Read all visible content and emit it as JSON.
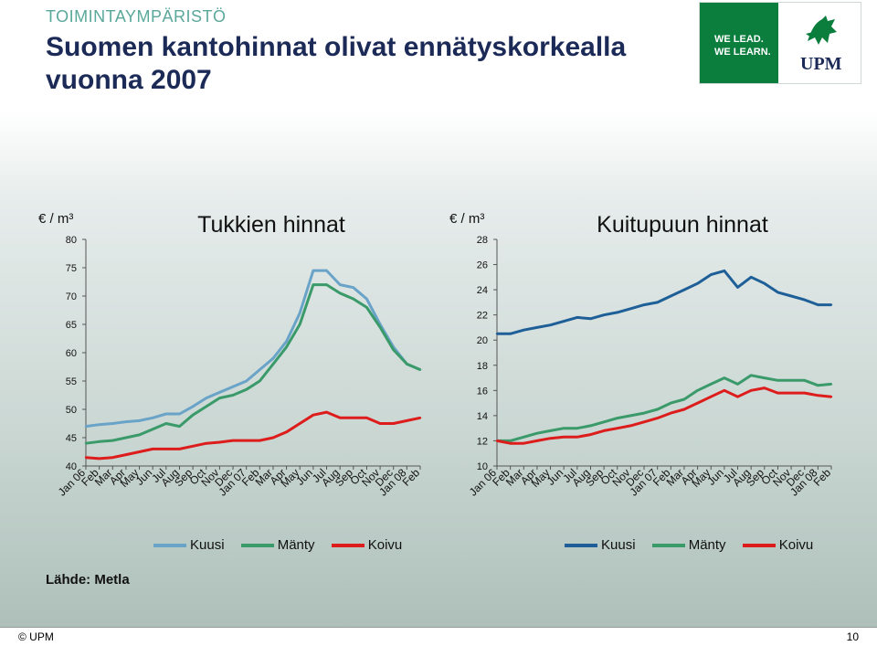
{
  "header": {
    "section": "TOIMINTAYMPÄRISTÖ",
    "title": "Suomen kantohinnat olivat ennätyskorkealla vuonna 2007"
  },
  "logo": {
    "line1": "WE LEAD.",
    "line2": "WE LEARN.",
    "brand": "UPM",
    "color": "#0b7e3e"
  },
  "source": "Lähde: Metla",
  "footer": {
    "copyright": "© UPM",
    "page": "10"
  },
  "colors": {
    "kuusi_left": "#6aa3c8",
    "manty": "#3a9a6a",
    "koivu": "#dd1c1c",
    "kuusi_right": "#1e5f98"
  },
  "chart_data": [
    {
      "type": "line",
      "title": "Tukkien hinnat",
      "ylabel": "€ / m³",
      "ylim": [
        40,
        80
      ],
      "yticks": [
        40,
        45,
        50,
        55,
        60,
        65,
        70,
        75,
        80
      ],
      "categories": [
        "Jan 06",
        "Feb",
        "Mar",
        "Apr",
        "May",
        "Jun",
        "Jul",
        "Aug",
        "Sep",
        "Oct",
        "Nov",
        "Dec",
        "Jan 07",
        "Feb",
        "Mar",
        "Apr",
        "May",
        "Jun",
        "Jul",
        "Aug",
        "Sep",
        "Oct",
        "Nov",
        "Dec",
        "Jan 08",
        "Feb"
      ],
      "series": [
        {
          "name": "Kuusi",
          "color": "#6aa3c8",
          "values": [
            47,
            47.3,
            47.5,
            47.8,
            48,
            48.5,
            49.2,
            49.2,
            50.5,
            52,
            53,
            54,
            55,
            57,
            59,
            62,
            67,
            74.5,
            74.5,
            72,
            71.5,
            69.5,
            65,
            61,
            58,
            57
          ]
        },
        {
          "name": "Mänty",
          "color": "#3a9a6a",
          "values": [
            44,
            44.3,
            44.5,
            45,
            45.5,
            46.5,
            47.5,
            47,
            49,
            50.5,
            52,
            52.5,
            53.5,
            55,
            58,
            61,
            65,
            72,
            72,
            70.5,
            69.5,
            68,
            64.5,
            60.5,
            58,
            57
          ]
        },
        {
          "name": "Koivu",
          "color": "#dd1c1c",
          "values": [
            41.5,
            41.3,
            41.5,
            42,
            42.5,
            43,
            43,
            43,
            43.5,
            44,
            44.2,
            44.5,
            44.5,
            44.5,
            45,
            46,
            47.5,
            49,
            49.5,
            48.5,
            48.5,
            48.5,
            47.5,
            47.5,
            48,
            48.5
          ]
        }
      ]
    },
    {
      "type": "line",
      "title": "Kuitupuun hinnat",
      "ylabel": "€ / m³",
      "ylim": [
        10,
        28
      ],
      "yticks": [
        10,
        12,
        14,
        16,
        18,
        20,
        22,
        24,
        26,
        28
      ],
      "categories": [
        "Jan 06",
        "Feb",
        "Mar",
        "Apr",
        "May",
        "Jun",
        "Jul",
        "Aug",
        "Sep",
        "Oct",
        "Nov",
        "Dec",
        "Jan 07",
        "Feb",
        "Mar",
        "Apr",
        "May",
        "Jun",
        "Jul",
        "Aug",
        "Sep",
        "Oct",
        "Nov",
        "Dec",
        "Jan 08",
        "Feb"
      ],
      "series": [
        {
          "name": "Kuusi",
          "color": "#1e5f98",
          "values": [
            20.5,
            20.5,
            20.8,
            21,
            21.2,
            21.5,
            21.8,
            21.7,
            22,
            22.2,
            22.5,
            22.8,
            23,
            23.5,
            24,
            24.5,
            25.2,
            25.5,
            24.2,
            25,
            24.5,
            23.8,
            23.5,
            23.2,
            22.8,
            22.8
          ]
        },
        {
          "name": "Mänty",
          "color": "#3a9a6a",
          "values": [
            12,
            12,
            12.3,
            12.6,
            12.8,
            13,
            13,
            13.2,
            13.5,
            13.8,
            14,
            14.2,
            14.5,
            15,
            15.3,
            16,
            16.5,
            17,
            16.5,
            17.2,
            17,
            16.8,
            16.8,
            16.8,
            16.4,
            16.5
          ]
        },
        {
          "name": "Koivu",
          "color": "#dd1c1c",
          "values": [
            12,
            11.8,
            11.8,
            12,
            12.2,
            12.3,
            12.3,
            12.5,
            12.8,
            13,
            13.2,
            13.5,
            13.8,
            14.2,
            14.5,
            15,
            15.5,
            16,
            15.5,
            16,
            16.2,
            15.8,
            15.8,
            15.8,
            15.6,
            15.5
          ]
        }
      ]
    }
  ]
}
